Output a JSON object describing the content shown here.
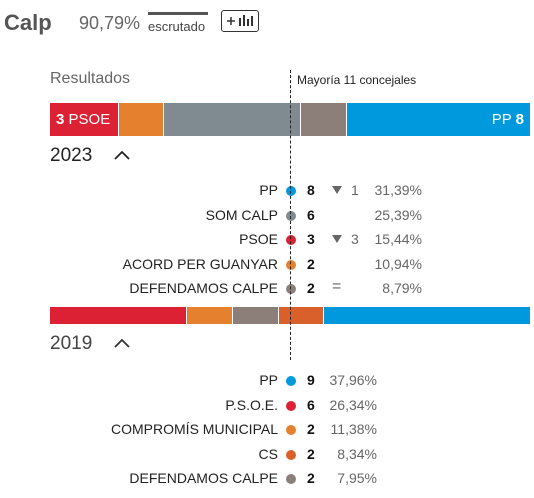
{
  "header": {
    "city": "Calp",
    "counted_pct": "90,79%",
    "counted_label": "escrutado",
    "add_button_icon": "add-chart-icon"
  },
  "results_label": "Resultados",
  "majority_label": "Mayoría 11 concejales",
  "colors": {
    "PP": "#0099dd",
    "SOM CALP": "#808a91",
    "PSOE": "#dc2134",
    "ACORD PER GUANYAR": "#e5812e",
    "DEFENDAMOS CALPE": "#8c7f7a",
    "COMPROMIS": "#e5812e",
    "CS": "#d9602a"
  },
  "election_2023": {
    "year": "2023",
    "bar": [
      {
        "party": "PSOE",
        "seats": 3,
        "color": "#dc2134",
        "label_seats": "3",
        "label_name": "PSOE"
      },
      {
        "party": "ACORD PER GUANYAR",
        "seats": 2,
        "color": "#e5812e"
      },
      {
        "party": "SOM CALP",
        "seats": 6,
        "color": "#808a91"
      },
      {
        "party": "DEFENDAMOS CALPE",
        "seats": 2,
        "color": "#8c7f7a"
      },
      {
        "party": "PP",
        "seats": 8,
        "color": "#0099dd",
        "label_seats": "8",
        "label_name": "PP"
      }
    ],
    "rows": [
      {
        "name": "PP",
        "color": "#0099dd",
        "seats": "8",
        "change_symbol": "down",
        "change": "1",
        "pct": "31,39%"
      },
      {
        "name": "SOM CALP",
        "color": "#808a91",
        "seats": "6",
        "change_symbol": "",
        "change": "",
        "pct": "25,39%"
      },
      {
        "name": "PSOE",
        "color": "#dc2134",
        "seats": "3",
        "change_symbol": "down",
        "change": "3",
        "pct": "15,44%"
      },
      {
        "name": "ACORD PER GUANYAR",
        "color": "#e5812e",
        "seats": "2",
        "change_symbol": "",
        "change": "",
        "pct": "10,94%"
      },
      {
        "name": "DEFENDAMOS CALPE",
        "color": "#8c7f7a",
        "seats": "2",
        "change_symbol": "equal",
        "change": "=",
        "pct": "8,79%"
      }
    ]
  },
  "election_2019": {
    "year": "2019",
    "bar": [
      {
        "party": "P.S.O.E.",
        "seats": 6,
        "color": "#dc2134"
      },
      {
        "party": "COMPROMÍS MUNICIPAL",
        "seats": 2,
        "color": "#e5812e"
      },
      {
        "party": "DEFENDAMOS CALPE",
        "seats": 2,
        "color": "#8c7f7a"
      },
      {
        "party": "CS",
        "seats": 2,
        "color": "#d9602a"
      },
      {
        "party": "PP",
        "seats": 9,
        "color": "#0099dd"
      }
    ],
    "rows": [
      {
        "name": "PP",
        "color": "#0099dd",
        "seats": "9",
        "pct": "37,96%"
      },
      {
        "name": "P.S.O.E.",
        "color": "#dc2134",
        "seats": "6",
        "pct": "26,34%"
      },
      {
        "name": "COMPROMÍS MUNICIPAL",
        "color": "#e5812e",
        "seats": "2",
        "pct": "11,38%"
      },
      {
        "name": "CS",
        "color": "#d9602a",
        "seats": "2",
        "pct": "8,34%"
      },
      {
        "name": "DEFENDAMOS CALPE",
        "color": "#8c7f7a",
        "seats": "2",
        "pct": "7,95%"
      }
    ]
  }
}
